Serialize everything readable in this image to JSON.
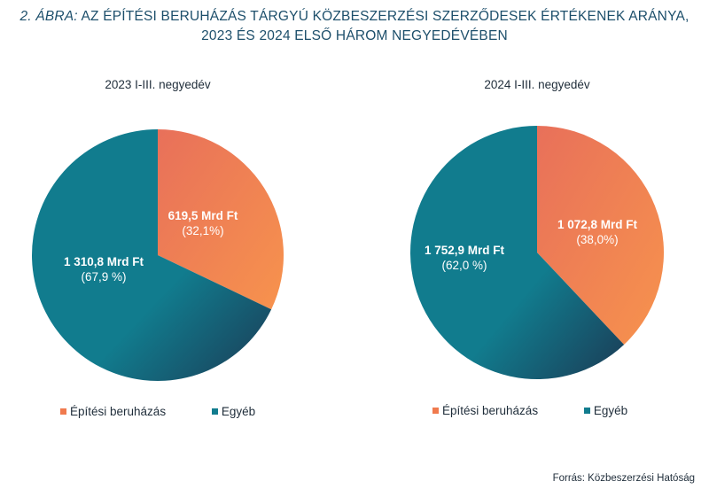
{
  "title": {
    "prefix": "2. ÁBRA:",
    "line1": "AZ ÉPÍTÉSI BERUHÁZÁS TÁRGYÚ KÖZBESZERZÉSI SZERZŐDESEK ÉRTÉKENEK ARÁNYA,",
    "line2": "2023 ÉS 2024 ELSŐ HÁROM NEGYEDÉVÉBEN"
  },
  "colors": {
    "epitesi": "#f07a4e",
    "epitesi_light": "#f7935c",
    "egyeb": "#117c8e",
    "egyeb_dark": "#1b3b55"
  },
  "legend": {
    "epitesi": "Építési beruházás",
    "egyeb": "Egyéb"
  },
  "source": "Forrás: Közbeszerzési Hatóság",
  "chart_data": [
    {
      "type": "pie",
      "title": "2023 I-III. negyedév",
      "slices": [
        {
          "name": "Építési beruházás",
          "value": 619.5,
          "percent": 32.1,
          "value_label": "619,5 Mrd Ft",
          "percent_label": "(32,1%)"
        },
        {
          "name": "Egyéb",
          "value": 1310.8,
          "percent": 67.9,
          "value_label": "1 310,8 Mrd Ft",
          "percent_label": "(67,9 %)"
        }
      ]
    },
    {
      "type": "pie",
      "title": "2024 I-III. negyedév",
      "slices": [
        {
          "name": "Építési beruházás",
          "value": 1072.8,
          "percent": 38.0,
          "value_label": "1 072,8 Mrd Ft",
          "percent_label": "(38,0%)"
        },
        {
          "name": "Egyéb",
          "value": 1752.9,
          "percent": 62.0,
          "value_label": "1 752,9 Mrd Ft",
          "percent_label": "(62,0 %)"
        }
      ]
    }
  ]
}
